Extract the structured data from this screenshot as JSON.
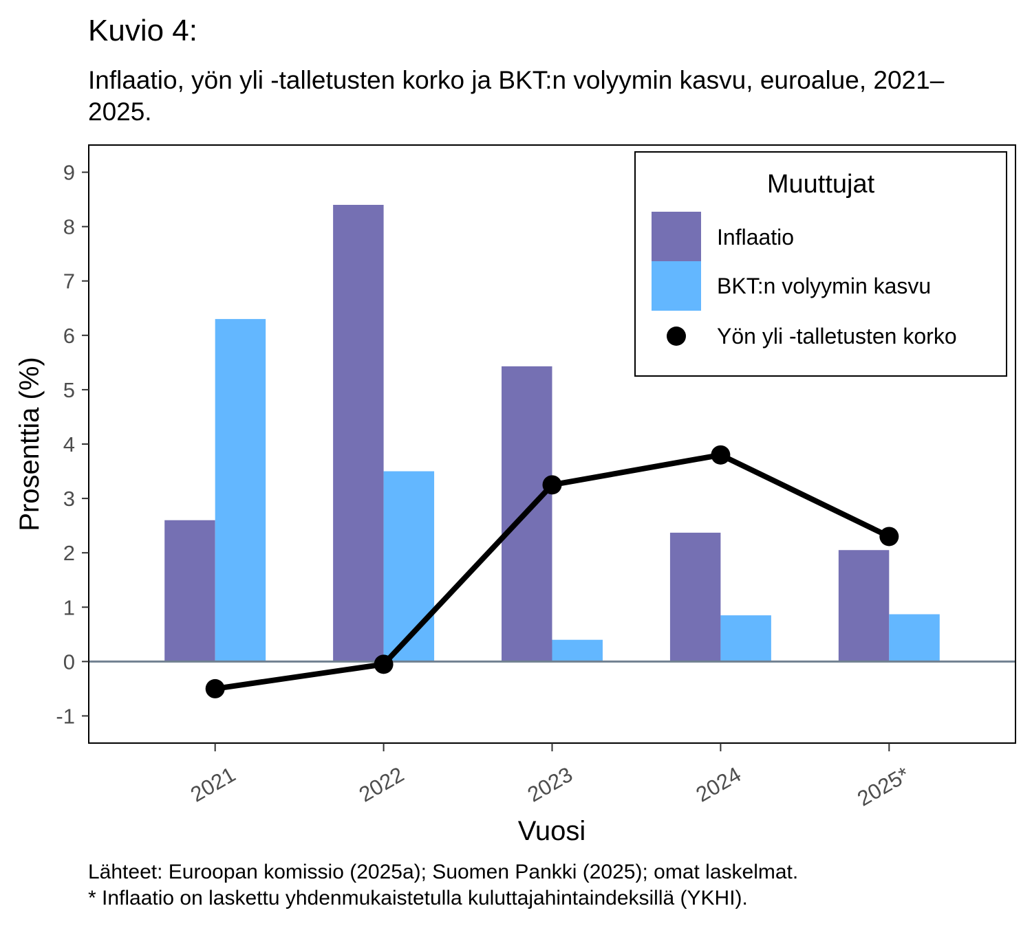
{
  "chart_data": {
    "type": "bar",
    "title": "Kuvio 4:",
    "subtitle": "Inflaatio, yön yli -talletusten korko ja BKT:n volyymin kasvu, euroalue, 2021–2025.",
    "xlabel": "Vuosi",
    "ylabel": "Prosenttia (%)",
    "ylim": [
      -1.5,
      9.5
    ],
    "yticks": [
      -1,
      0,
      1,
      2,
      3,
      4,
      5,
      6,
      7,
      8,
      9
    ],
    "categories": [
      "2021",
      "2022",
      "2023",
      "2024",
      "2025*"
    ],
    "legend_title": "Muuttujat",
    "legend_position": "top-right",
    "grid": false,
    "series": [
      {
        "name": "Inflaatio",
        "kind": "bar",
        "color": "#7570B3",
        "values": [
          2.6,
          8.4,
          5.43,
          2.37,
          2.05
        ]
      },
      {
        "name": "BKT:n volyymin kasvu",
        "kind": "bar",
        "color": "#63B7FF",
        "values": [
          6.3,
          3.5,
          0.4,
          0.85,
          0.87
        ]
      },
      {
        "name": "Yön yli -talletusten korko",
        "kind": "line",
        "color": "#000000",
        "values": [
          -0.5,
          -0.05,
          3.25,
          3.8,
          2.3
        ]
      }
    ]
  },
  "caption": {
    "line1": "Lähteet: Euroopan komissio (2025a); Suomen Pankki (2025); omat laskelmat.",
    "line2": "* Inflaatio on laskettu yhdenmukaistetulla kuluttajahintaindeksillä (YKHI)."
  }
}
